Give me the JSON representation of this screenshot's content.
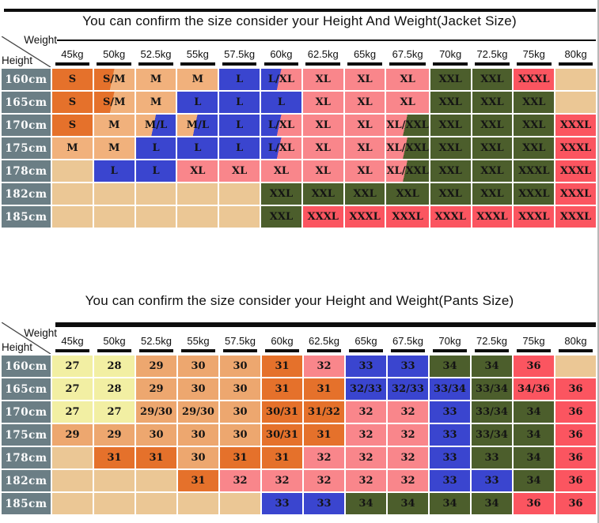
{
  "colors": {
    "orange": "#e5712b",
    "tan": "#f1b17c",
    "blue": "#3a45cf",
    "pink": "#f9868b",
    "green": "#4c5e2c",
    "red": "#fb5560",
    "yellow": "#f2efa3",
    "lightorange": "#eda76f",
    "empty": "#ebc795",
    "height_header": "#6b7e85",
    "rule": "#0d0d0d"
  },
  "chart_data": [
    {
      "type": "table",
      "title": "You can confirm the size consider  your Height And Weight(Jacket Size)",
      "corner": {
        "weight": "Weight",
        "height": "Height"
      },
      "columns": [
        "45kg",
        "50kg",
        "52.5kg",
        "55kg",
        "57.5kg",
        "60kg",
        "62.5kg",
        "65kg",
        "67.5kg",
        "70kg",
        "72.5kg",
        "75kg",
        "80kg"
      ],
      "rows": [
        {
          "height": "160cm",
          "cells": [
            [
              "S",
              "orange"
            ],
            [
              "S/M",
              "orange|tan"
            ],
            [
              "M",
              "tan"
            ],
            [
              "M",
              "tan"
            ],
            [
              "L",
              "blue"
            ],
            [
              "L/XL",
              "blue|pink"
            ],
            [
              "XL",
              "pink"
            ],
            [
              "XL",
              "pink"
            ],
            [
              "XL",
              "pink"
            ],
            [
              "XXL",
              "green"
            ],
            [
              "XXL",
              "green"
            ],
            [
              "XXXL",
              "red"
            ],
            [
              "",
              "empty"
            ]
          ]
        },
        {
          "height": "165cm",
          "cells": [
            [
              "S",
              "orange"
            ],
            [
              "S/M",
              "orange|tan"
            ],
            [
              "M",
              "tan"
            ],
            [
              "L",
              "blue"
            ],
            [
              "L",
              "blue"
            ],
            [
              "L",
              "blue"
            ],
            [
              "XL",
              "pink"
            ],
            [
              "XL",
              "pink"
            ],
            [
              "XL",
              "pink"
            ],
            [
              "XXL",
              "green"
            ],
            [
              "XXL",
              "green"
            ],
            [
              "XXL",
              "green"
            ],
            [
              "",
              "empty"
            ]
          ]
        },
        {
          "height": "170cm",
          "cells": [
            [
              "S",
              "orange"
            ],
            [
              "M",
              "tan"
            ],
            [
              "M/L",
              "tan|blue"
            ],
            [
              "M/L",
              "tan|blue"
            ],
            [
              "L",
              "blue"
            ],
            [
              "L/XL",
              "blue|pink"
            ],
            [
              "XL",
              "pink"
            ],
            [
              "XL",
              "pink"
            ],
            [
              "XL/XXL",
              "pink|green"
            ],
            [
              "XXL",
              "green"
            ],
            [
              "XXL",
              "green"
            ],
            [
              "XXL",
              "green"
            ],
            [
              "XXXL",
              "red"
            ]
          ]
        },
        {
          "height": "175cm",
          "cells": [
            [
              "M",
              "tan"
            ],
            [
              "M",
              "tan"
            ],
            [
              "L",
              "blue"
            ],
            [
              "L",
              "blue"
            ],
            [
              "L",
              "blue"
            ],
            [
              "L/XL",
              "blue|pink"
            ],
            [
              "XL",
              "pink"
            ],
            [
              "XL",
              "pink"
            ],
            [
              "XL/XXL",
              "pink|green"
            ],
            [
              "XXL",
              "green"
            ],
            [
              "XXL",
              "green"
            ],
            [
              "XXL",
              "green"
            ],
            [
              "XXXL",
              "red"
            ]
          ]
        },
        {
          "height": "178cm",
          "cells": [
            [
              "",
              "empty"
            ],
            [
              "L",
              "blue"
            ],
            [
              "L",
              "blue"
            ],
            [
              "XL",
              "pink"
            ],
            [
              "XL",
              "pink"
            ],
            [
              "XL",
              "pink"
            ],
            [
              "XL",
              "pink"
            ],
            [
              "XL",
              "pink"
            ],
            [
              "XL/XXL",
              "pink|green"
            ],
            [
              "XXL",
              "green"
            ],
            [
              "XXL",
              "green"
            ],
            [
              "XXXL",
              "green"
            ],
            [
              "XXXL",
              "red"
            ]
          ]
        },
        {
          "height": "182cm",
          "cells": [
            [
              "",
              "empty"
            ],
            [
              "",
              "empty"
            ],
            [
              "",
              "empty"
            ],
            [
              "",
              "empty"
            ],
            [
              "",
              "empty"
            ],
            [
              "XXL",
              "green"
            ],
            [
              "XXL",
              "green"
            ],
            [
              "XXL",
              "green"
            ],
            [
              "XXL",
              "green"
            ],
            [
              "XXL",
              "green"
            ],
            [
              "XXL",
              "green"
            ],
            [
              "XXXL",
              "green"
            ],
            [
              "XXXL",
              "red"
            ]
          ]
        },
        {
          "height": "185cm",
          "cells": [
            [
              "",
              "empty"
            ],
            [
              "",
              "empty"
            ],
            [
              "",
              "empty"
            ],
            [
              "",
              "empty"
            ],
            [
              "",
              "empty"
            ],
            [
              "XXL",
              "green"
            ],
            [
              "XXXL",
              "red"
            ],
            [
              "XXXL",
              "red"
            ],
            [
              "XXXL",
              "red"
            ],
            [
              "XXXL",
              "red"
            ],
            [
              "XXXL",
              "red"
            ],
            [
              "XXXL",
              "red"
            ],
            [
              "XXXL",
              "red"
            ]
          ]
        }
      ]
    },
    {
      "type": "table",
      "title": "You can confirm the size consider your Height and Weight(Pants Size)",
      "corner": {
        "weight": "Weight",
        "height": "Height"
      },
      "columns": [
        "45kg",
        "50kg",
        "52.5kg",
        "55kg",
        "57.5kg",
        "60kg",
        "62.5kg",
        "65kg",
        "67.5kg",
        "70kg",
        "72.5kg",
        "75kg",
        "80kg"
      ],
      "rows": [
        {
          "height": "160cm",
          "cells": [
            [
              "27",
              "yellow"
            ],
            [
              "28",
              "yellow"
            ],
            [
              "29",
              "lightorange"
            ],
            [
              "30",
              "lightorange"
            ],
            [
              "30",
              "lightorange"
            ],
            [
              "31",
              "orange"
            ],
            [
              "32",
              "pink"
            ],
            [
              "33",
              "blue"
            ],
            [
              "33",
              "blue"
            ],
            [
              "34",
              "green"
            ],
            [
              "34",
              "green"
            ],
            [
              "36",
              "red"
            ],
            [
              "",
              "empty"
            ]
          ]
        },
        {
          "height": "165cm",
          "cells": [
            [
              "27",
              "yellow"
            ],
            [
              "28",
              "yellow"
            ],
            [
              "29",
              "lightorange"
            ],
            [
              "30",
              "lightorange"
            ],
            [
              "30",
              "lightorange"
            ],
            [
              "31",
              "orange"
            ],
            [
              "31",
              "orange"
            ],
            [
              "32/33",
              "blue"
            ],
            [
              "32/33",
              "blue"
            ],
            [
              "33/34",
              "blue"
            ],
            [
              "33/34",
              "green"
            ],
            [
              "34/36",
              "red"
            ],
            [
              "36",
              "red"
            ]
          ]
        },
        {
          "height": "170cm",
          "cells": [
            [
              "27",
              "yellow"
            ],
            [
              "27",
              "yellow"
            ],
            [
              "29/30",
              "lightorange"
            ],
            [
              "29/30",
              "lightorange"
            ],
            [
              "30",
              "lightorange"
            ],
            [
              "30/31",
              "orange"
            ],
            [
              "31/32",
              "orange"
            ],
            [
              "32",
              "pink"
            ],
            [
              "32",
              "pink"
            ],
            [
              "33",
              "blue"
            ],
            [
              "33/34",
              "green"
            ],
            [
              "34",
              "green"
            ],
            [
              "36",
              "red"
            ]
          ]
        },
        {
          "height": "175cm",
          "cells": [
            [
              "29",
              "lightorange"
            ],
            [
              "29",
              "lightorange"
            ],
            [
              "30",
              "lightorange"
            ],
            [
              "30",
              "lightorange"
            ],
            [
              "30",
              "lightorange"
            ],
            [
              "30/31",
              "orange"
            ],
            [
              "31",
              "orange"
            ],
            [
              "32",
              "pink"
            ],
            [
              "32",
              "pink"
            ],
            [
              "33",
              "blue"
            ],
            [
              "33/34",
              "green"
            ],
            [
              "34",
              "green"
            ],
            [
              "36",
              "red"
            ]
          ]
        },
        {
          "height": "178cm",
          "cells": [
            [
              "",
              "empty"
            ],
            [
              "31",
              "orange"
            ],
            [
              "31",
              "orange"
            ],
            [
              "30",
              "lightorange"
            ],
            [
              "31",
              "orange"
            ],
            [
              "31",
              "orange"
            ],
            [
              "32",
              "pink"
            ],
            [
              "32",
              "pink"
            ],
            [
              "32",
              "pink"
            ],
            [
              "33",
              "blue"
            ],
            [
              "33",
              "green"
            ],
            [
              "34",
              "green"
            ],
            [
              "36",
              "red"
            ]
          ]
        },
        {
          "height": "182cm",
          "cells": [
            [
              "",
              "empty"
            ],
            [
              "",
              "empty"
            ],
            [
              "",
              "empty"
            ],
            [
              "31",
              "orange"
            ],
            [
              "32",
              "pink"
            ],
            [
              "32",
              "pink"
            ],
            [
              "32",
              "pink"
            ],
            [
              "32",
              "pink"
            ],
            [
              "32",
              "pink"
            ],
            [
              "33",
              "blue"
            ],
            [
              "33",
              "blue"
            ],
            [
              "34",
              "green"
            ],
            [
              "36",
              "red"
            ]
          ]
        },
        {
          "height": "185cm",
          "cells": [
            [
              "",
              "empty"
            ],
            [
              "",
              "empty"
            ],
            [
              "",
              "empty"
            ],
            [
              "",
              "empty"
            ],
            [
              "",
              "empty"
            ],
            [
              "33",
              "blue"
            ],
            [
              "33",
              "blue"
            ],
            [
              "34",
              "green"
            ],
            [
              "34",
              "green"
            ],
            [
              "34",
              "green"
            ],
            [
              "34",
              "green"
            ],
            [
              "36",
              "red"
            ],
            [
              "36",
              "red"
            ]
          ]
        }
      ]
    }
  ]
}
